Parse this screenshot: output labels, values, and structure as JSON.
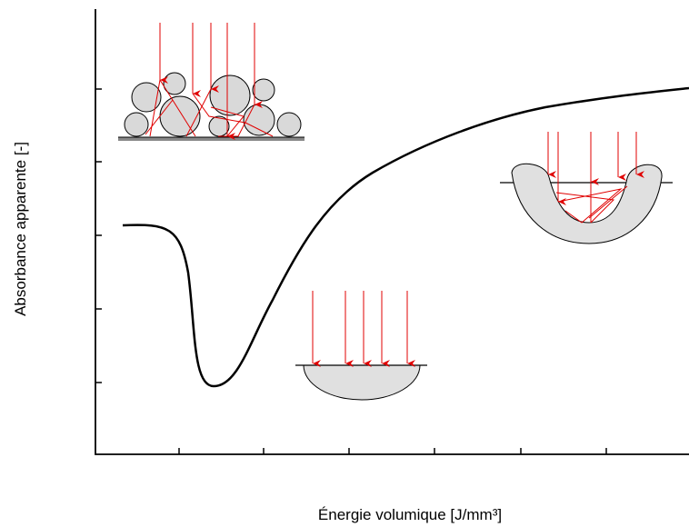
{
  "axes": {
    "y_label": "Absorbance apparente [-]",
    "x_label": "Énergie volumique [J/mm³]"
  }
}
